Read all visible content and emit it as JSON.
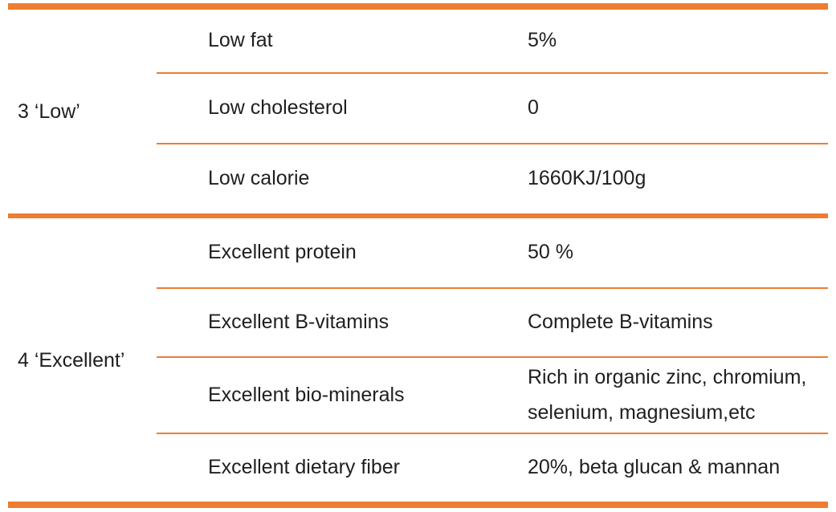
{
  "accent_color": "#ED7D31",
  "text_color": "#1F1F1F",
  "table": {
    "groups": [
      {
        "label": "3 ‘Low’",
        "rows": [
          {
            "attribute": "Low fat",
            "value": "5%"
          },
          {
            "attribute": "Low cholesterol",
            "value": "0"
          },
          {
            "attribute": "Low calorie",
            "value": "1660KJ/100g"
          }
        ]
      },
      {
        "label": "4 ‘Excellent’",
        "rows": [
          {
            "attribute": "Excellent protein",
            "value": "50 %"
          },
          {
            "attribute": "Excellent B-vitamins",
            "value": "Complete B-vitamins"
          },
          {
            "attribute": "Excellent bio-minerals",
            "value": "Rich in organic zinc, chromium, selenium, magnesium,etc"
          },
          {
            "attribute": "Excellent dietary fiber",
            "value": "20%, beta glucan & mannan"
          }
        ]
      }
    ]
  }
}
